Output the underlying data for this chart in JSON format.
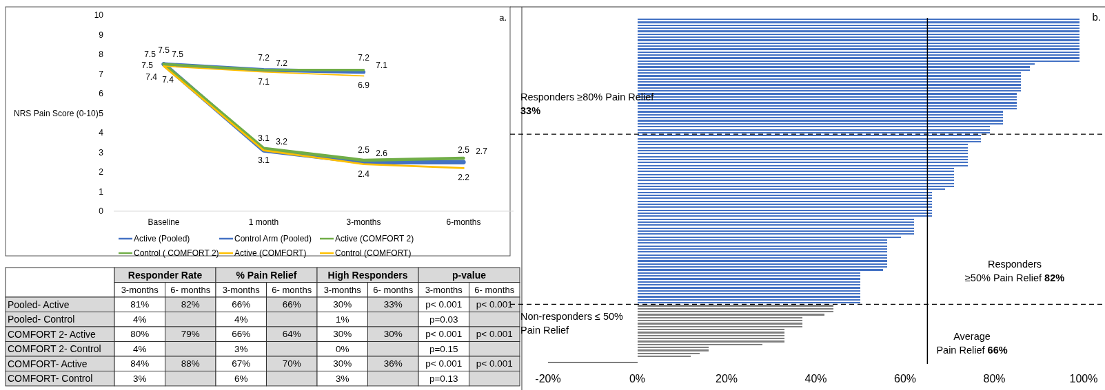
{
  "chart_data": [
    {
      "type": "line",
      "ylabel": "NRS Pain Score (0-10)",
      "annotations": [
        "a."
      ],
      "categories": [
        "Baseline",
        "1 month",
        "3-months",
        "6-months"
      ],
      "ylim": [
        0,
        10
      ],
      "yticks": [
        0,
        1,
        2,
        3,
        4,
        5,
        6,
        7,
        8,
        9,
        10
      ],
      "data_labels": true,
      "legend": "bottom",
      "grid": false,
      "line_style": "solid",
      "series": [
        {
          "name": "Active (Pooled)",
          "color": "#4472c4",
          "values": [
            7.5,
            3.1,
            2.5,
            2.5
          ]
        },
        {
          "name": "Control Arm (Pooled)",
          "color": "#4472c4",
          "values": [
            7.5,
            7.2,
            7.1,
            null
          ]
        },
        {
          "name": "Active (COMFORT 2)",
          "color": "#70ad47",
          "values": [
            7.5,
            3.2,
            2.6,
            2.7
          ]
        },
        {
          "name": "Control ( COMFORT 2)",
          "color": "#70ad47",
          "values": [
            7.5,
            7.2,
            7.2,
            null
          ]
        },
        {
          "name": "Active (COMFORT)",
          "color": "#ffc000",
          "values": [
            7.4,
            3.1,
            2.4,
            2.2
          ]
        },
        {
          "name": "Control (COMFORT)",
          "color": "#ffc000",
          "values": [
            7.4,
            7.1,
            6.9,
            null
          ]
        }
      ]
    },
    {
      "type": "other",
      "annotations": [
        "Responder Rate",
        "% Pain Relief",
        "High Responders",
        "p-value"
      ],
      "categories": [
        "3-months",
        "6- months",
        "3-months",
        "6- months",
        "3-months",
        "6- months",
        "3-months",
        "6- months"
      ],
      "y_categories": [
        "Pooled- Active",
        "Pooled- Control",
        "COMFORT 2- Active",
        "COMFORT 2- Control",
        "COMFORT- Active",
        "COMFORT- Control"
      ],
      "cell_labels": [
        [
          "81%",
          "82%",
          "66%",
          "66%",
          "30%",
          "33%",
          "p< 0.001",
          "p< 0.001"
        ],
        [
          "4%",
          null,
          "4%",
          null,
          "1%",
          null,
          "p=0.03",
          null
        ],
        [
          "80%",
          "79%",
          "66%",
          "64%",
          "30%",
          "30%",
          "p< 0.001",
          "p< 0.001"
        ],
        [
          "4%",
          null,
          "3%",
          null,
          "0%",
          null,
          "p=0.15",
          null
        ],
        [
          "84%",
          "88%",
          "67%",
          "70%",
          "30%",
          "36%",
          "p< 0.001",
          "p< 0.001"
        ],
        [
          "3%",
          null,
          "6%",
          null,
          "3%",
          null,
          "p=0.13",
          null
        ]
      ]
    },
    {
      "type": "bar",
      "orientation": "horizontal",
      "annotations": [
        "b.",
        "Responders ≥80% Pain Relief 33%",
        "Responders ≥50% Pain Relief 82%",
        "Non-responders ≤ 50% Pain Relief",
        "Average Pain Relief 66%"
      ],
      "xlim": [
        -20,
        100
      ],
      "xticks": [
        {
          "value": -20,
          "label": "-20%"
        },
        {
          "value": 0,
          "label": "0%"
        },
        {
          "value": 20,
          "label": "20%"
        },
        {
          "value": 40,
          "label": "40%"
        },
        {
          "value": 60,
          "label": "60%"
        },
        {
          "value": 80,
          "label": "80%"
        },
        {
          "value": 100,
          "label": "100%"
        }
      ],
      "grid": false,
      "ref_lines": [
        {
          "axis": "x",
          "value": 65,
          "line_style": "solid",
          "color": "#000000"
        }
      ],
      "categories": [
        null,
        null,
        null,
        null,
        null,
        null,
        null,
        null,
        null,
        null,
        null,
        null,
        null,
        null,
        null,
        null,
        null,
        null,
        null,
        null,
        null,
        null,
        null,
        null,
        null,
        null,
        null,
        null,
        null,
        null,
        null,
        null,
        null,
        null,
        null,
        null,
        null,
        null,
        null,
        null,
        null,
        null,
        null,
        null,
        null,
        null,
        null,
        null,
        null,
        null,
        null,
        null,
        null,
        null,
        null,
        null,
        null,
        null,
        null,
        null,
        null,
        null,
        null,
        null,
        null,
        null,
        null,
        null,
        null,
        null,
        null,
        null,
        null,
        null,
        null,
        null,
        null,
        null,
        null,
        null,
        null,
        null,
        null,
        null,
        null,
        null,
        null,
        null,
        null,
        null,
        null,
        null,
        null,
        null,
        null,
        null,
        null,
        null,
        null,
        null,
        null,
        null,
        null,
        null,
        null,
        null,
        null,
        null,
        null,
        null,
        null,
        null,
        null,
        null,
        null,
        null
      ],
      "values": [
        99,
        99,
        99,
        99,
        99,
        99,
        99,
        99,
        99,
        99,
        99,
        99,
        99,
        99,
        99,
        89,
        88,
        88,
        86,
        86,
        86,
        86,
        86,
        86,
        86,
        85,
        85,
        85,
        85,
        85,
        85,
        82,
        82,
        82,
        82,
        82,
        79,
        79,
        79,
        77,
        77,
        77,
        74,
        74,
        74,
        74,
        74,
        74,
        74,
        74,
        71,
        71,
        71,
        71,
        71,
        71,
        71,
        69,
        66,
        66,
        66,
        66,
        66,
        66,
        66,
        66,
        66,
        62,
        62,
        62,
        62,
        62,
        62,
        59,
        56,
        56,
        56,
        56,
        56,
        56,
        56,
        56,
        56,
        56,
        55,
        50,
        50,
        50,
        50,
        50,
        50,
        50,
        50,
        50,
        50,
        50,
        44,
        44,
        44,
        42,
        37,
        37,
        37,
        37,
        33,
        33,
        33,
        33,
        33,
        28,
        16,
        16,
        14,
        12,
        0,
        -20
      ],
      "colors": [
        "#4472c4",
        "#4472c4",
        "#4472c4",
        "#4472c4",
        "#4472c4",
        "#4472c4",
        "#4472c4",
        "#4472c4",
        "#4472c4",
        "#4472c4",
        "#4472c4",
        "#4472c4",
        "#4472c4",
        "#4472c4",
        "#4472c4",
        "#4472c4",
        "#4472c4",
        "#4472c4",
        "#4472c4",
        "#4472c4",
        "#4472c4",
        "#4472c4",
        "#4472c4",
        "#4472c4",
        "#4472c4",
        "#4472c4",
        "#4472c4",
        "#4472c4",
        "#4472c4",
        "#4472c4",
        "#4472c4",
        "#4472c4",
        "#4472c4",
        "#4472c4",
        "#4472c4",
        "#4472c4",
        "#4472c4",
        "#4472c4",
        "#4472c4",
        "#4472c4",
        "#4472c4",
        "#4472c4",
        "#4472c4",
        "#4472c4",
        "#4472c4",
        "#4472c4",
        "#4472c4",
        "#4472c4",
        "#4472c4",
        "#4472c4",
        "#4472c4",
        "#4472c4",
        "#4472c4",
        "#4472c4",
        "#4472c4",
        "#4472c4",
        "#4472c4",
        "#4472c4",
        "#4472c4",
        "#4472c4",
        "#4472c4",
        "#4472c4",
        "#4472c4",
        "#4472c4",
        "#4472c4",
        "#4472c4",
        "#4472c4",
        "#4472c4",
        "#4472c4",
        "#4472c4",
        "#4472c4",
        "#4472c4",
        "#4472c4",
        "#4472c4",
        "#4472c4",
        "#4472c4",
        "#4472c4",
        "#4472c4",
        "#4472c4",
        "#4472c4",
        "#4472c4",
        "#4472c4",
        "#4472c4",
        "#4472c4",
        "#4472c4",
        "#4472c4",
        "#4472c4",
        "#4472c4",
        "#4472c4",
        "#4472c4",
        "#4472c4",
        "#4472c4",
        "#4472c4",
        "#4472c4",
        "#4472c4",
        "#4472c4",
        "#7f7f7f",
        "#7f7f7f",
        "#7f7f7f",
        "#7f7f7f",
        "#7f7f7f",
        "#7f7f7f",
        "#7f7f7f",
        "#7f7f7f",
        "#7f7f7f",
        "#7f7f7f",
        "#7f7f7f",
        "#7f7f7f",
        "#7f7f7f",
        "#7f7f7f",
        "#7f7f7f",
        "#7f7f7f",
        "#7f7f7f",
        "#7f7f7f",
        "#7f7f7f",
        "#7f7f7f"
      ]
    }
  ]
}
